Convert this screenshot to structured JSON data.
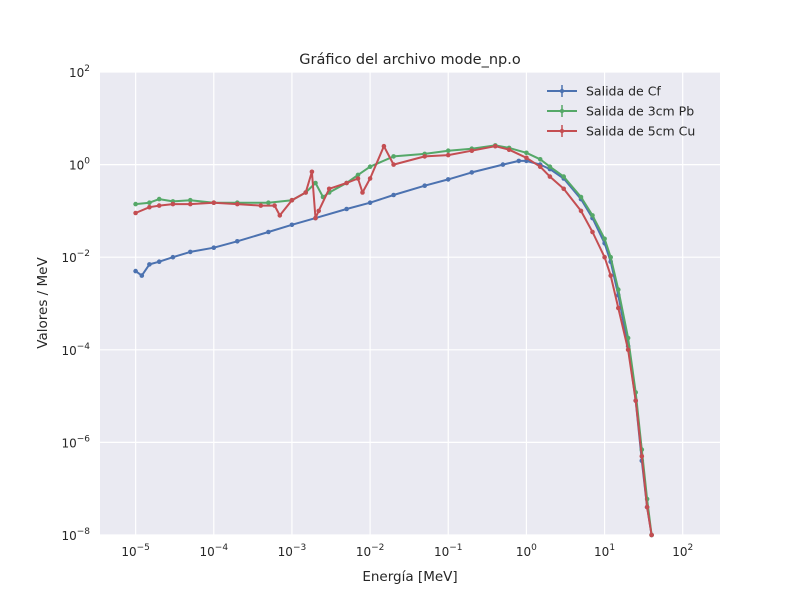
{
  "chart_data": {
    "type": "line",
    "title": "Gráfico del archivo mode_np.o",
    "xlabel": "Energía [MeV]",
    "ylabel": "Valores / MeV",
    "xscale": "log",
    "yscale": "log",
    "xlim": [
      3.5e-06,
      300
    ],
    "ylim": [
      1e-08,
      100
    ],
    "x_ticks": [
      {
        "value": 1e-05,
        "base": "10",
        "exp": "−5"
      },
      {
        "value": 0.0001,
        "base": "10",
        "exp": "−4"
      },
      {
        "value": 0.001,
        "base": "10",
        "exp": "−3"
      },
      {
        "value": 0.01,
        "base": "10",
        "exp": "−2"
      },
      {
        "value": 0.1,
        "base": "10",
        "exp": "−1"
      },
      {
        "value": 1,
        "base": "10",
        "exp": "0"
      },
      {
        "value": 10,
        "base": "10",
        "exp": "1"
      },
      {
        "value": 100,
        "base": "10",
        "exp": "2"
      }
    ],
    "y_ticks": [
      {
        "value": 1e-08,
        "base": "10",
        "exp": "−8"
      },
      {
        "value": 1e-06,
        "base": "10",
        "exp": "−6"
      },
      {
        "value": 0.0001,
        "base": "10",
        "exp": "−4"
      },
      {
        "value": 0.01,
        "base": "10",
        "exp": "−2"
      },
      {
        "value": 1,
        "base": "10",
        "exp": "0"
      },
      {
        "value": 100,
        "base": "10",
        "exp": "2"
      }
    ],
    "grid": true,
    "legend_position": "top-right",
    "plot_background": "#eaeaf2",
    "grid_color": "#ffffff",
    "series": [
      {
        "name": "Salida de Cf",
        "color": "#4c72b0",
        "x": [
          1e-05,
          1.2e-05,
          1.5e-05,
          2e-05,
          3e-05,
          5e-05,
          0.0001,
          0.0002,
          0.0005,
          0.001,
          0.002,
          0.005,
          0.01,
          0.02,
          0.05,
          0.1,
          0.2,
          0.5,
          0.8,
          1,
          1.5,
          2,
          3,
          5,
          7,
          10,
          12,
          15,
          20,
          25,
          30,
          35,
          40
        ],
        "y": [
          0.005,
          0.004,
          0.007,
          0.008,
          0.01,
          0.013,
          0.016,
          0.022,
          0.035,
          0.05,
          0.07,
          0.11,
          0.15,
          0.22,
          0.35,
          0.48,
          0.68,
          1.0,
          1.2,
          1.2,
          1.0,
          0.8,
          0.5,
          0.18,
          0.07,
          0.02,
          0.008,
          0.0015,
          0.00012,
          8e-06,
          4e-07,
          4e-08,
          1e-08
        ]
      },
      {
        "name": "Salida de 3cm Pb",
        "color": "#55a868",
        "x": [
          1e-05,
          1.5e-05,
          2e-05,
          3e-05,
          5e-05,
          0.0001,
          0.0002,
          0.0005,
          0.001,
          0.0015,
          0.002,
          0.0025,
          0.003,
          0.005,
          0.007,
          0.01,
          0.02,
          0.05,
          0.1,
          0.2,
          0.4,
          0.6,
          1,
          1.5,
          2,
          3,
          5,
          7,
          10,
          12,
          15,
          20,
          25,
          30,
          35,
          40
        ],
        "y": [
          0.14,
          0.15,
          0.18,
          0.16,
          0.17,
          0.15,
          0.15,
          0.15,
          0.17,
          0.25,
          0.4,
          0.2,
          0.25,
          0.4,
          0.6,
          0.9,
          1.5,
          1.7,
          2.0,
          2.2,
          2.6,
          2.3,
          1.8,
          1.3,
          0.9,
          0.55,
          0.2,
          0.08,
          0.025,
          0.01,
          0.002,
          0.00018,
          1.2e-05,
          7e-07,
          6e-08,
          1e-08
        ]
      },
      {
        "name": "Salida de 5cm Cu",
        "color": "#c44e52",
        "x": [
          1e-05,
          1.5e-05,
          2e-05,
          3e-05,
          5e-05,
          0.0001,
          0.0002,
          0.0004,
          0.0006,
          0.0007,
          0.001,
          0.0015,
          0.0018,
          0.002,
          0.0022,
          0.003,
          0.005,
          0.007,
          0.008,
          0.01,
          0.015,
          0.02,
          0.05,
          0.1,
          0.2,
          0.4,
          0.6,
          1,
          1.5,
          2,
          3,
          5,
          7,
          10,
          12,
          15,
          20,
          25,
          30,
          35,
          40
        ],
        "y": [
          0.09,
          0.12,
          0.13,
          0.14,
          0.14,
          0.15,
          0.14,
          0.13,
          0.13,
          0.08,
          0.17,
          0.25,
          0.7,
          0.07,
          0.1,
          0.3,
          0.4,
          0.5,
          0.25,
          0.5,
          2.5,
          1.0,
          1.5,
          1.6,
          2.0,
          2.5,
          2.1,
          1.4,
          0.9,
          0.55,
          0.3,
          0.1,
          0.035,
          0.01,
          0.004,
          0.0008,
          0.0001,
          8e-06,
          5e-07,
          4e-08,
          1e-08
        ]
      }
    ]
  }
}
